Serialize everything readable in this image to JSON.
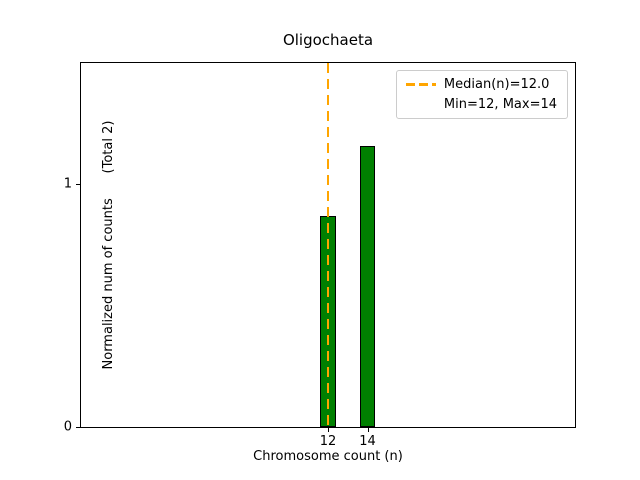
{
  "chart_data": {
    "type": "bar",
    "title": "Oligochaeta",
    "xlabel": "Chromosome count (n)",
    "ylabel": "Normalized num of counts      (Total 2)",
    "categories": [
      12,
      14
    ],
    "values": [
      0.87,
      1.16
    ],
    "bar_width": 0.8,
    "bar_color": "#008000",
    "bar_edge_color": "#000000",
    "xlim": [
      -0.5,
      24.5
    ],
    "ylim": [
      0,
      1.5
    ],
    "xticks": [
      "12",
      "14"
    ],
    "xtick_positions": [
      12,
      14
    ],
    "yticks": [
      "0",
      "1"
    ],
    "ytick_positions": [
      0,
      1
    ],
    "grid": false,
    "median_line": {
      "x": 12.0,
      "color": "#FFA500",
      "style": "dashed"
    },
    "legend": {
      "position": "upper right",
      "entries": [
        "Median(n)=12.0",
        "Min=12, Max=14"
      ]
    }
  }
}
